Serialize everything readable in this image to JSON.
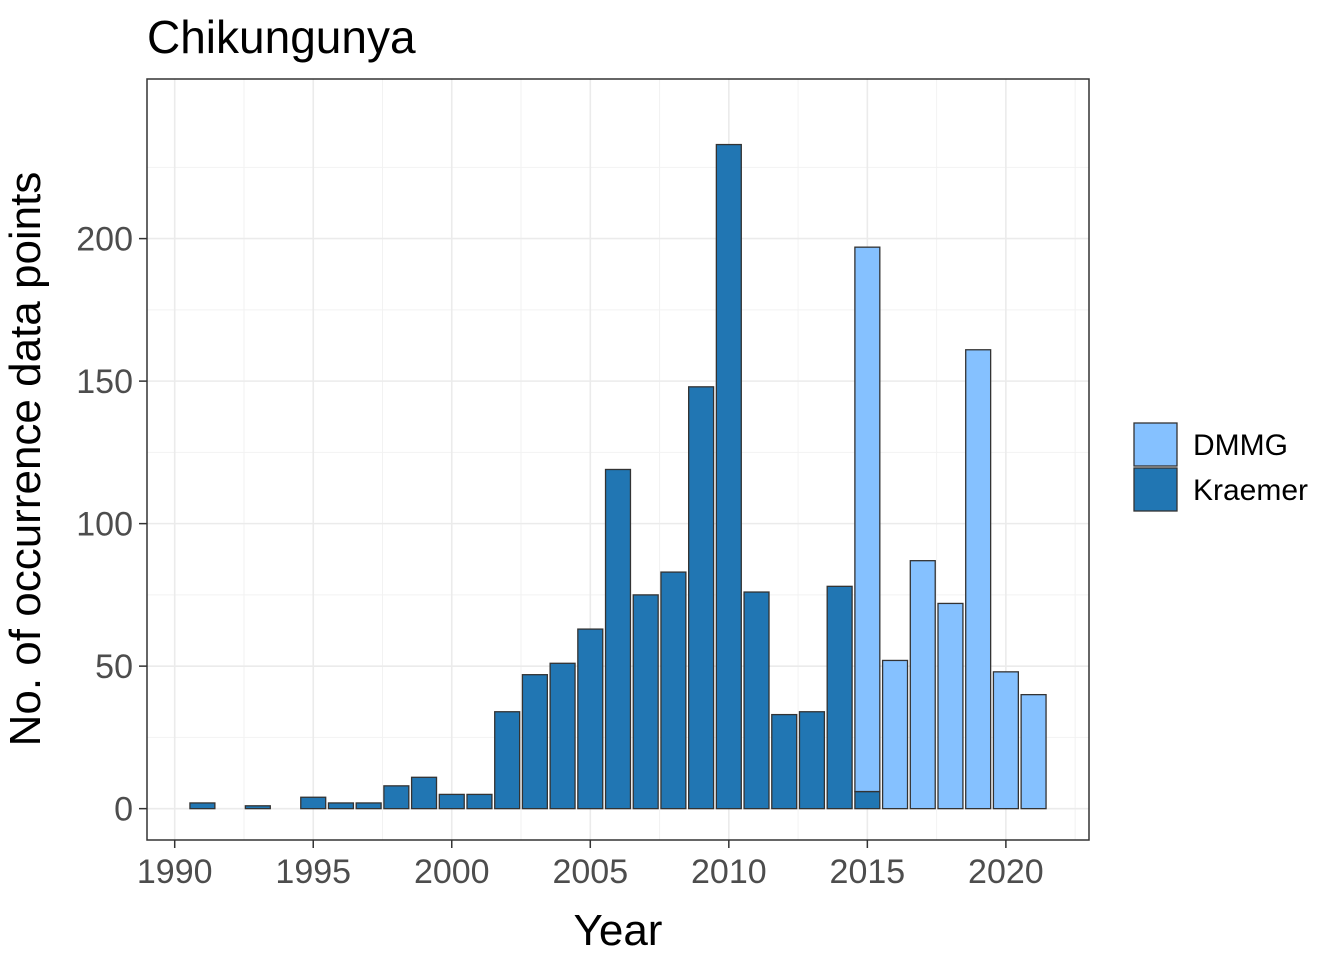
{
  "chart_data": {
    "type": "bar",
    "stacked": true,
    "title": "Chikungunya",
    "xlabel": "Year",
    "ylabel": "No. of occurrence data points",
    "xlim": [
      1989,
      2023
    ],
    "ylim": [
      -11,
      256
    ],
    "x_ticks": [
      1990,
      1995,
      2000,
      2005,
      2010,
      2015,
      2020
    ],
    "y_ticks": [
      0,
      50,
      100,
      150,
      200
    ],
    "grid": true,
    "legend_position": "right",
    "series": [
      {
        "name": "DMMG",
        "color": "#85c1ff",
        "points": [
          {
            "x": 2015,
            "y": 191
          },
          {
            "x": 2016,
            "y": 52
          },
          {
            "x": 2017,
            "y": 87
          },
          {
            "x": 2018,
            "y": 72
          },
          {
            "x": 2019,
            "y": 161
          },
          {
            "x": 2020,
            "y": 48
          },
          {
            "x": 2021,
            "y": 40
          }
        ]
      },
      {
        "name": "Kraemer",
        "color": "#2176b3",
        "points": [
          {
            "x": 1991,
            "y": 2
          },
          {
            "x": 1993,
            "y": 1
          },
          {
            "x": 1995,
            "y": 4
          },
          {
            "x": 1996,
            "y": 2
          },
          {
            "x": 1997,
            "y": 2
          },
          {
            "x": 1998,
            "y": 8
          },
          {
            "x": 1999,
            "y": 11
          },
          {
            "x": 2000,
            "y": 5
          },
          {
            "x": 2001,
            "y": 5
          },
          {
            "x": 2002,
            "y": 34
          },
          {
            "x": 2003,
            "y": 47
          },
          {
            "x": 2004,
            "y": 51
          },
          {
            "x": 2005,
            "y": 63
          },
          {
            "x": 2006,
            "y": 119
          },
          {
            "x": 2007,
            "y": 75
          },
          {
            "x": 2008,
            "y": 83
          },
          {
            "x": 2009,
            "y": 148
          },
          {
            "x": 2010,
            "y": 233
          },
          {
            "x": 2011,
            "y": 76
          },
          {
            "x": 2012,
            "y": 33
          },
          {
            "x": 2013,
            "y": 34
          },
          {
            "x": 2014,
            "y": 78
          },
          {
            "x": 2015,
            "y": 6
          }
        ]
      }
    ]
  }
}
